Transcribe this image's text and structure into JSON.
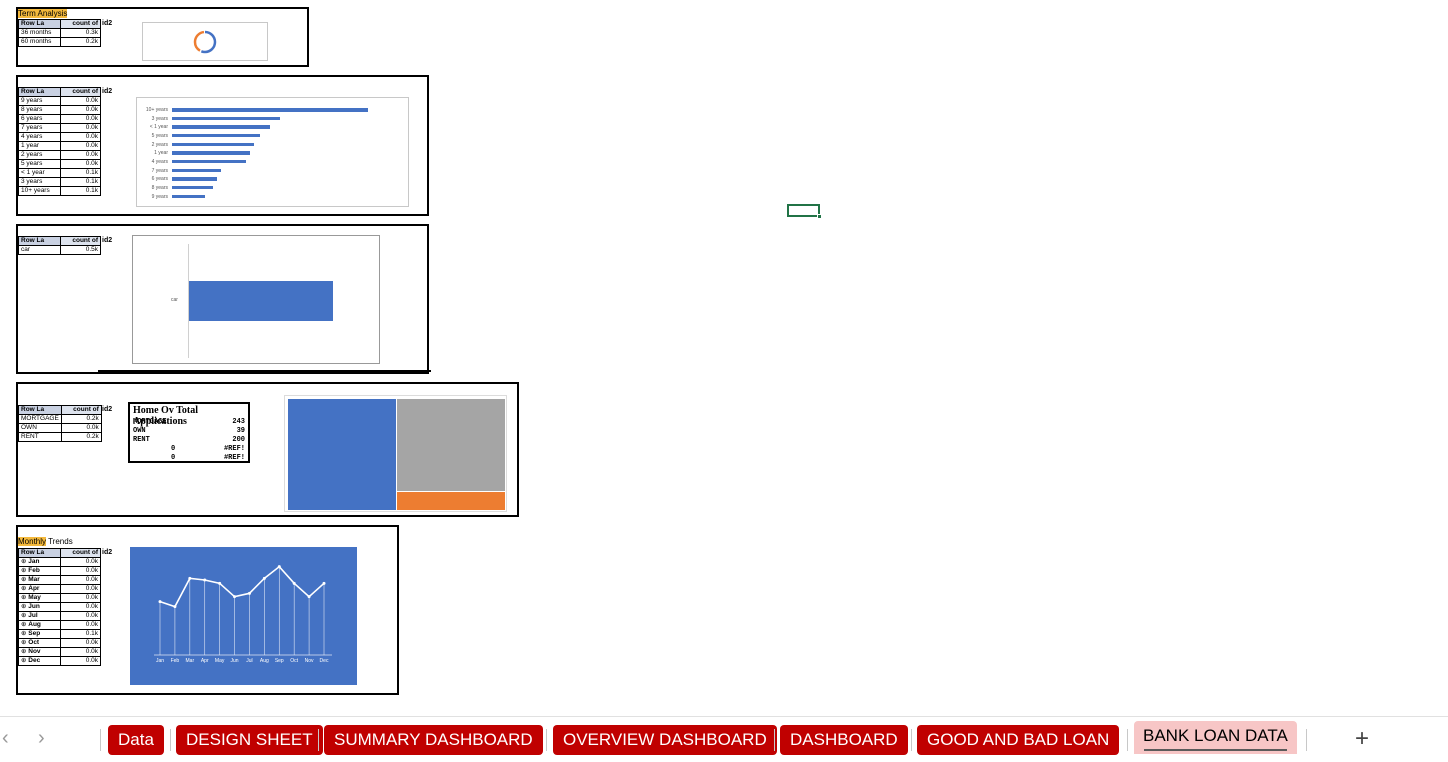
{
  "term_block": {
    "title": "Term Analysis",
    "hdr_col1": "Row La",
    "hdr_col2": "count of",
    "hdr_extra": "id2",
    "rows": [
      {
        "label": "36 months",
        "value": "0.3k"
      },
      {
        "label": "60 months",
        "value": "0.2k"
      }
    ],
    "donut": {
      "segments": [
        {
          "value": 0.58,
          "color": "#4472c4"
        },
        {
          "value": 0.42,
          "color": "#ed7d31"
        }
      ]
    }
  },
  "emp_block": {
    "hdr_col1": "Row La",
    "hdr_col2": "count of",
    "hdr_extra": "id2",
    "rows": [
      {
        "label": "9 years",
        "value": "0.0k"
      },
      {
        "label": "8 years",
        "value": "0.0k"
      },
      {
        "label": "6 years",
        "value": "0.0k"
      },
      {
        "label": "7 years",
        "value": "0.0k"
      },
      {
        "label": "4 years",
        "value": "0.0k"
      },
      {
        "label": "1 year",
        "value": "0.0k"
      },
      {
        "label": "2 years",
        "value": "0.0k"
      },
      {
        "label": "5 years",
        "value": "0.0k"
      },
      {
        "label": "< 1 year",
        "value": "0.1k"
      },
      {
        "label": "3 years",
        "value": "0.1k"
      },
      {
        "label": "10+ years",
        "value": "0.1k"
      }
    ],
    "bars": [
      {
        "label": "10+ years",
        "value": 1.0
      },
      {
        "label": "3 years",
        "value": 0.55
      },
      {
        "label": "< 1 year",
        "value": 0.5
      },
      {
        "label": "5 years",
        "value": 0.45
      },
      {
        "label": "2 years",
        "value": 0.42
      },
      {
        "label": "1 year",
        "value": 0.4
      },
      {
        "label": "4 years",
        "value": 0.38
      },
      {
        "label": "7 years",
        "value": 0.25
      },
      {
        "label": "6 years",
        "value": 0.23
      },
      {
        "label": "8 years",
        "value": 0.21
      },
      {
        "label": "9 years",
        "value": 0.17
      }
    ]
  },
  "purpose_block": {
    "hdr_col1": "Row La",
    "hdr_col2": "count of",
    "hdr_extra": "id2",
    "rows": [
      {
        "label": "car",
        "value": "0.5k"
      }
    ],
    "bar": {
      "label": "car",
      "value": 0.5
    }
  },
  "home_block": {
    "hdr_col1": "Row La",
    "hdr_col2": "count of",
    "hdr_extra": "id2",
    "rows": [
      {
        "label": "MORTGAGE",
        "value": "0.2k"
      },
      {
        "label": "OWN",
        "value": "0.0k"
      },
      {
        "label": "RENT",
        "value": "0.2k"
      }
    ],
    "summary": {
      "title": "Home Ov Total Applications",
      "rows": [
        {
          "label": "MORTGAGE",
          "value": "243"
        },
        {
          "label": "OWN",
          "value": "39"
        },
        {
          "label": "RENT",
          "value": "200"
        }
      ],
      "error_rows": [
        {
          "label": "0",
          "value": "#REF!"
        },
        {
          "label": "0",
          "value": "#REF!"
        }
      ]
    },
    "treemap": {
      "items": [
        {
          "name": "MORTGAGE",
          "value": 243,
          "color": "#4472c4"
        },
        {
          "name": "RENT",
          "value": 200,
          "color": "#a5a5a5"
        },
        {
          "name": "OWN",
          "value": 39,
          "color": "#ed7d31"
        }
      ]
    }
  },
  "monthly_block": {
    "title_highlight": "Monthly",
    "title_rest": " Trends",
    "hdr_col1": "Row La",
    "hdr_col2": "count of",
    "hdr_extra": "id2",
    "rows": [
      {
        "label": "Jan",
        "value": "0.0k"
      },
      {
        "label": "Feb",
        "value": "0.0k"
      },
      {
        "label": "Mar",
        "value": "0.0k"
      },
      {
        "label": "Apr",
        "value": "0.0k"
      },
      {
        "label": "May",
        "value": "0.0k"
      },
      {
        "label": "Jun",
        "value": "0.0k"
      },
      {
        "label": "Jul",
        "value": "0.0k"
      },
      {
        "label": "Aug",
        "value": "0.0k"
      },
      {
        "label": "Sep",
        "value": "0.1k"
      },
      {
        "label": "Oct",
        "value": "0.0k"
      },
      {
        "label": "Nov",
        "value": "0.0k"
      },
      {
        "label": "Dec",
        "value": "0.0k"
      }
    ]
  },
  "chart_data": {
    "type": "line",
    "categories": [
      "Jan",
      "Feb",
      "Mar",
      "Apr",
      "May",
      "Jun",
      "Jul",
      "Aug",
      "Sep",
      "Oct",
      "Nov",
      "Dec"
    ],
    "values": [
      32,
      29,
      46,
      45,
      43,
      35,
      37,
      46,
      53,
      43,
      35,
      43
    ],
    "ylim": [
      0,
      60
    ],
    "title": "",
    "grid": false,
    "background": "#4472c4",
    "line_color": "#ffffff"
  },
  "tabs": [
    {
      "label": "Data",
      "active": false
    },
    {
      "label": "DESIGN SHEET",
      "active": false
    },
    {
      "label": "SUMMARY DASHBOARD",
      "active": false
    },
    {
      "label": "OVERVIEW DASHBOARD",
      "active": false
    },
    {
      "label": "DASHBOARD",
      "active": false
    },
    {
      "label": "GOOD AND BAD LOAN",
      "active": false
    },
    {
      "label": "BANK LOAN DATA",
      "active": true
    }
  ],
  "add_sheet_label": "+",
  "nav_prev": "‹",
  "nav_next": "›"
}
